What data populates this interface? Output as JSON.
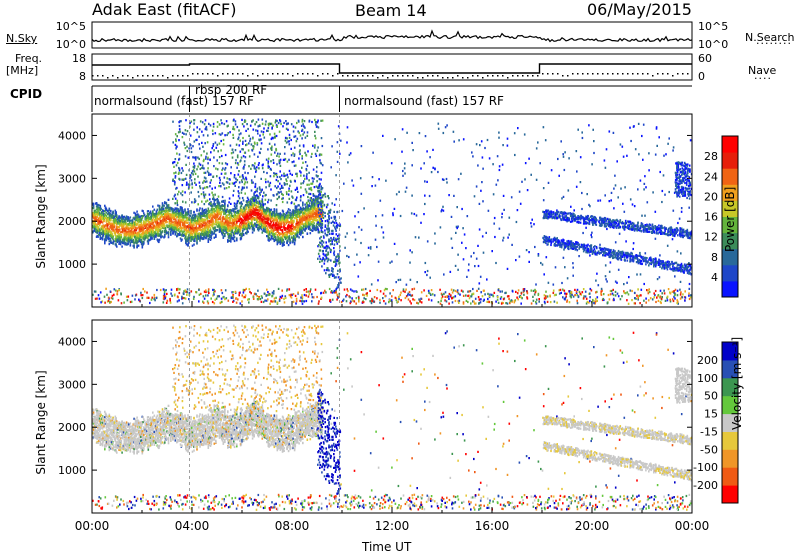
{
  "header": {
    "station": "Adak East (fitACF)",
    "beam": "Beam 14",
    "date": "06/May/2015"
  },
  "strips": {
    "nsky": {
      "label": "N.Sky",
      "ticks": [
        "10^5",
        "10^0"
      ],
      "right_label": "N.Search",
      "right_ticks": [
        "10^5",
        "10^0"
      ]
    },
    "freq": {
      "label_line1": "Freq.",
      "label_line2": "[MHz]",
      "ticks": [
        "18",
        "8"
      ],
      "right_label": "Nave",
      "right_ticks": [
        "60",
        "0"
      ]
    },
    "cpid": {
      "label": "CPID",
      "segments": [
        {
          "text": "normalsound (fast) 157 RF",
          "start_h": 0.0,
          "end_h": 3.9
        },
        {
          "text": "rbsp 200 RF",
          "start_h": 3.9,
          "end_h": 9.9
        },
        {
          "text": "normalsound (fast) 157 RF",
          "start_h": 9.9,
          "end_h": 24.0
        }
      ]
    }
  },
  "chart_data": [
    {
      "type": "heatmap",
      "name": "power",
      "ylabel": "Slant Range [km]",
      "ylim": [
        0,
        4500
      ],
      "yticks": [
        1000,
        2000,
        3000,
        4000
      ],
      "xlim": [
        0,
        24
      ],
      "colorbar": {
        "label": "Power [dB]",
        "range": [
          0,
          32
        ],
        "ticks": [
          "4",
          "8",
          "12",
          "16",
          "20",
          "24",
          "28"
        ],
        "colors": [
          "#0a14ff",
          "#1e46c8",
          "#28689a",
          "#3c8c5a",
          "#64b43c",
          "#c8c828",
          "#f0a01e",
          "#f06414",
          "#e61e0a",
          "#ff0000"
        ]
      },
      "band_profile": {
        "hours": [
          0,
          0.5,
          1,
          1.5,
          2,
          2.5,
          3,
          3.5,
          4,
          4.5,
          5,
          5.5,
          6,
          6.5,
          7,
          7.5,
          8,
          8.5,
          9
        ],
        "center_km": [
          2100,
          1950,
          1820,
          1800,
          1850,
          1950,
          2100,
          1980,
          1850,
          1950,
          2150,
          1950,
          2050,
          2250,
          2000,
          1850,
          1900,
          2100,
          2200
        ]
      }
    },
    {
      "type": "heatmap",
      "name": "velocity",
      "ylabel": "Slant Range [km]",
      "ylim": [
        0,
        4500
      ],
      "yticks": [
        1000,
        2000,
        3000,
        4000
      ],
      "xlim": [
        0,
        24
      ],
      "colorbar": {
        "label": "Velocity [m s⁻¹]",
        "ticks": [
          "200",
          "100",
          "50",
          "15",
          "-15",
          "-50",
          "-100",
          "-200"
        ],
        "colors": [
          "#0000c8",
          "#2850b4",
          "#3c9650",
          "#64c83c",
          "#c8c8c8",
          "#e6c83c",
          "#f09628",
          "#f05a14",
          "#ff0000"
        ]
      }
    }
  ],
  "xaxis": {
    "ticks": [
      "00:00",
      "04:00",
      "08:00",
      "12:00",
      "16:00",
      "20:00",
      "00:00"
    ],
    "label": "Time UT"
  }
}
